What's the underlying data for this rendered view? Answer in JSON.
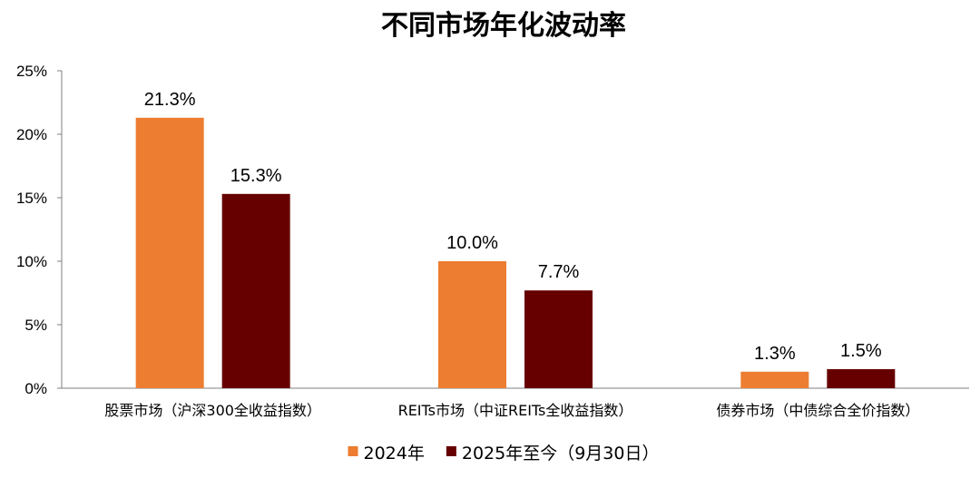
{
  "chart_data": {
    "type": "bar",
    "title": "不同市场年化波动率",
    "categories": [
      "股票市场（沪深300全收益指数）",
      "REITs市场（中证REITs全收益指数）",
      "债券市场（中债综合全价指数）"
    ],
    "series": [
      {
        "name": "2024年",
        "values": [
          21.3,
          10.0,
          1.3
        ],
        "labels": [
          "21.3%",
          "10.0%",
          "1.3%"
        ],
        "color": "#ED7D31"
      },
      {
        "name": "2025年至今（9月30日）",
        "values": [
          15.3,
          7.7,
          1.5
        ],
        "labels": [
          "15.3%",
          "7.7%",
          "1.5%"
        ],
        "color": "#660000"
      }
    ],
    "yticks": [
      "0%",
      "5%",
      "10%",
      "15%",
      "20%",
      "25%"
    ],
    "ylim": [
      0,
      25
    ],
    "grid": false,
    "legend_position": "bottom"
  }
}
